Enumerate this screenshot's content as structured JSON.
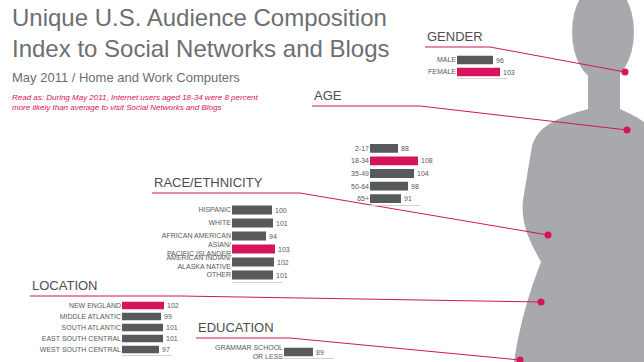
{
  "header": {
    "title": "Unique U.S. Audience Composition Index to Social Networks and Blogs",
    "subtitle": "May 2011 / Home and Work Computers",
    "note": "Read as: During May 2011, Internet users aged 18-34 were 8 percent more likely than average to visit Social Networks and Blogs"
  },
  "chart_data": [
    {
      "type": "bar",
      "title": "GENDER",
      "orientation": "horizontal",
      "categories": [
        "MALE",
        "FEMALE"
      ],
      "values": [
        96,
        103
      ],
      "colors": [
        "#58595b",
        "#d6135b"
      ],
      "xlim": [
        60,
        110
      ],
      "grid": false,
      "data_labels": true,
      "tick_labels": "y"
    },
    {
      "type": "bar",
      "title": "AGE",
      "orientation": "horizontal",
      "categories": [
        "2-17",
        "18-34",
        "35-49",
        "50-64",
        "65+"
      ],
      "values": [
        88,
        108,
        104,
        98,
        91
      ],
      "colors": [
        "#58595b",
        "#d6135b",
        "#58595b",
        "#58595b",
        "#58595b"
      ],
      "xlim": [
        60,
        110
      ],
      "grid": false,
      "data_labels": true,
      "tick_labels": "y"
    },
    {
      "type": "bar",
      "title": "RACE/ETHNICITY",
      "orientation": "horizontal",
      "categories": [
        "HISPANIC",
        "WHITE",
        "AFRICAN AMERICAN",
        "ASIAN/PACIFIC ISLANDER",
        "AMERICAN INDIAN/ALASKA NATIVE",
        "OTHER"
      ],
      "values": [
        100,
        101,
        94,
        103,
        102,
        101
      ],
      "colors": [
        "#58595b",
        "#58595b",
        "#58595b",
        "#d6135b",
        "#58595b",
        "#58595b"
      ],
      "xlim": [
        60,
        110
      ],
      "grid": false,
      "data_labels": true,
      "tick_labels": "y"
    },
    {
      "type": "bar",
      "title": "LOCATION",
      "orientation": "horizontal",
      "categories": [
        "NEW ENGLAND",
        "MIDDLE ATLANTIC",
        "SOUTH ATLANTIC",
        "EAST SOUTH CENTRAL",
        "WEST SOUTH CENTRAL"
      ],
      "values": [
        102,
        99,
        101,
        101,
        97
      ],
      "colors": [
        "#d6135b",
        "#58595b",
        "#58595b",
        "#58595b",
        "#58595b"
      ],
      "xlim": [
        60,
        110
      ],
      "grid": false,
      "data_labels": true,
      "tick_labels": "y"
    },
    {
      "type": "bar",
      "title": "EDUCATION",
      "orientation": "horizontal",
      "categories": [
        "GRAMMAR SCHOOL OR LESS"
      ],
      "values": [
        89
      ],
      "colors": [
        "#58595b"
      ],
      "xlim": [
        60,
        110
      ],
      "grid": false,
      "data_labels": true,
      "tick_labels": "y"
    }
  ]
}
